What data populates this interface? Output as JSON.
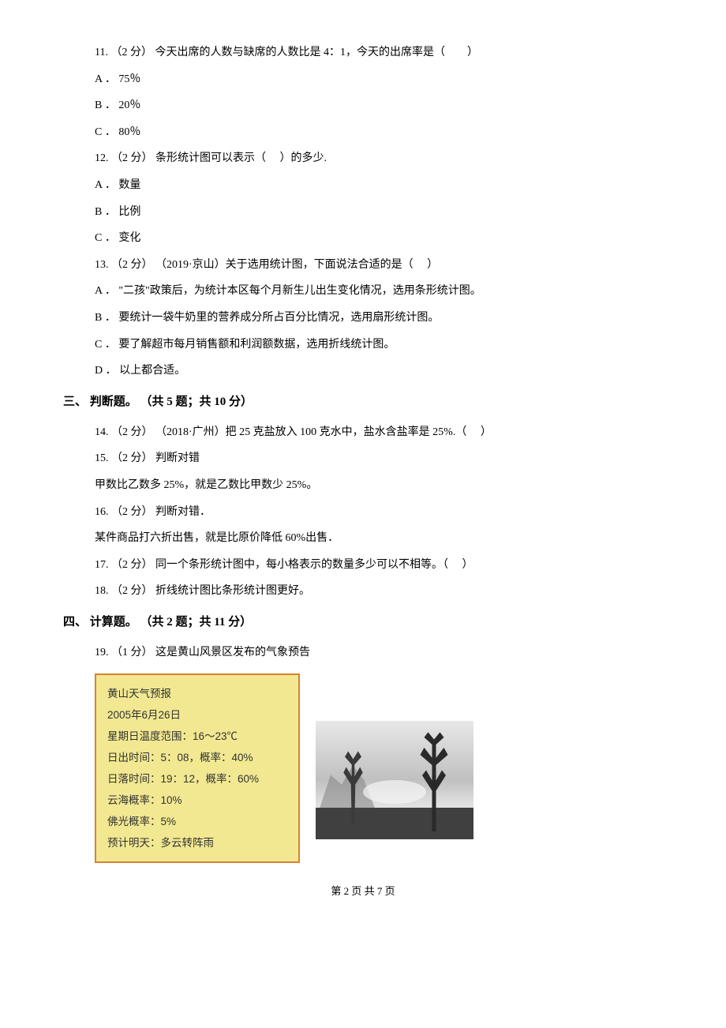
{
  "q11": {
    "text": "11. （2 分） 今天出席的人数与缺席的人数比是 4：1，今天的出席率是（　　）",
    "options": {
      "a": "A ． 75％",
      "b": "B ． 20％",
      "c": "C ． 80％"
    }
  },
  "q12": {
    "text": "12. （2 分） 条形统计图可以表示（　 ）的多少.",
    "options": {
      "a": "A ． 数量",
      "b": "B ． 比例",
      "c": "C ． 变化"
    }
  },
  "q13": {
    "text": "13. （2 分） （2019·京山）关于选用统计图，下面说法合适的是（　 ）",
    "options": {
      "a": "A ． \"二孩\"政策后，为统计本区每个月新生儿出生变化情况，选用条形统计图。",
      "b": "B ． 要统计一袋牛奶里的营养成分所占百分比情况，选用扇形统计图。",
      "c": "C ． 要了解超市每月销售额和利润额数据，选用折线统计图。",
      "d": "D ． 以上都合适。"
    }
  },
  "section3": {
    "header": "三、 判断题。 （共 5 题；共 10 分）"
  },
  "q14": {
    "text": "14. （2 分） （2018·广州）把 25 克盐放入 100 克水中，盐水含盐率是 25%.（　 ）"
  },
  "q15": {
    "text": "15. （2 分） 判断对错",
    "sub": "甲数比乙数多 25%，就是乙数比甲数少 25%。"
  },
  "q16": {
    "text": "16. （2 分） 判断对错．",
    "sub": "某件商品打六折出售，就是比原价降低 60%出售．"
  },
  "q17": {
    "text": "17. （2 分） 同一个条形统计图中，每小格表示的数量多少可以不相等。（　 ）"
  },
  "q18": {
    "text": "18. （2 分） 折线统计图比条形统计图更好。"
  },
  "section4": {
    "header": "四、 计算题。 （共 2 题；共 11 分）"
  },
  "q19": {
    "text": "19. （1 分） 这是黄山风景区发布的气象预告"
  },
  "weather": {
    "title": "黄山天气预报",
    "date": "2005年6月26日",
    "temp": "星期日温度范围：16～23℃",
    "sunrise": "日出时间：5：08，概率：40%",
    "sunset": "日落时间：19：12，概率：60%",
    "cloud": "云海概率：10%",
    "light": "佛光概率：5%",
    "forecast": "预计明天：多云转阵雨"
  },
  "footer": {
    "text": "第 2 页 共 7 页"
  },
  "colors": {
    "weather_bg": "#f2e891",
    "weather_border": "#d8822e",
    "text": "#000000"
  }
}
